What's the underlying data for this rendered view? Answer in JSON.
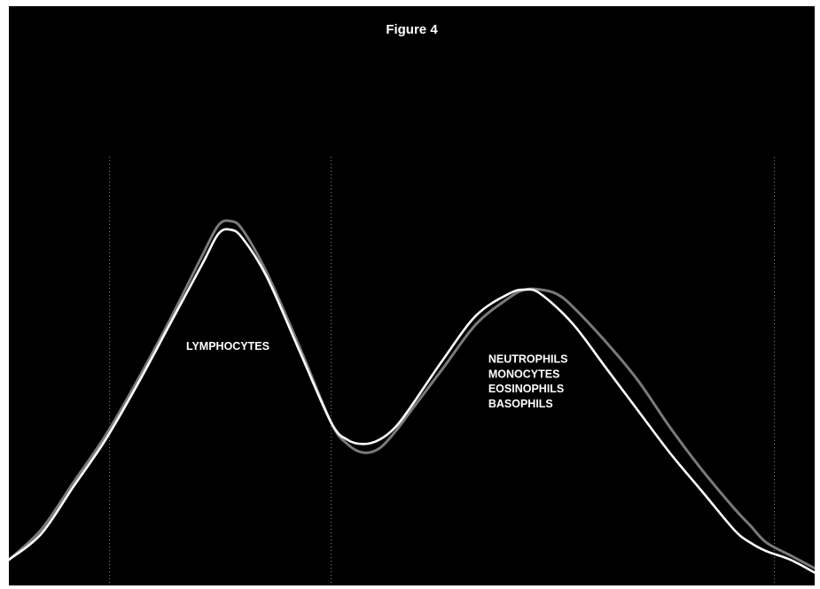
{
  "chart_data": {
    "type": "line",
    "title": "Figure 4",
    "xlabel": "",
    "ylabel": "",
    "xlim": [
      0,
      100
    ],
    "ylim": [
      0,
      100
    ],
    "grid": {
      "vertical_dotted_lines_at_x": [
        12.5,
        40,
        95
      ]
    },
    "series": [
      {
        "color": "#ffffff",
        "x": [
          0,
          4,
          8,
          12,
          16,
          20,
          24,
          26,
          27.5,
          29,
          32,
          36,
          40,
          42,
          44,
          46,
          48,
          50,
          54,
          58,
          62,
          64,
          66,
          70,
          74,
          78,
          82,
          86,
          90,
          92,
          94,
          97,
          100
        ],
        "y": [
          6,
          12,
          23,
          34,
          47,
          61,
          75,
          82,
          83,
          81,
          72,
          55,
          38,
          34,
          33,
          34,
          37,
          42,
          53,
          63,
          68,
          69,
          68,
          61,
          51,
          41,
          31,
          22,
          13,
          10,
          8,
          6,
          3
        ]
      },
      {
        "color": "#7a7a7a",
        "x": [
          0,
          4,
          8,
          12,
          16,
          20,
          24,
          26,
          27.5,
          29,
          32,
          36,
          40,
          42,
          44,
          46,
          48,
          50,
          54,
          58,
          62,
          64,
          66,
          68,
          70,
          74,
          78,
          82,
          86,
          90,
          92,
          94,
          97,
          100
        ],
        "y": [
          6,
          13,
          24,
          35,
          48,
          62,
          77,
          84,
          85,
          83,
          73,
          56,
          38,
          33,
          31,
          32,
          36,
          41,
          51,
          61,
          67,
          69,
          69,
          68,
          65,
          57,
          48,
          37,
          27,
          18,
          14,
          10,
          7,
          4
        ]
      }
    ],
    "annotations": [
      {
        "text": "LYMPHOCYTES",
        "x": 22,
        "y": 55
      },
      {
        "text": "NEUTROPHILS",
        "x": 59.5,
        "y": 52
      },
      {
        "text": "MONOCYTES",
        "x": 59.5,
        "y": 48.5
      },
      {
        "text": "EOSINOPHILS",
        "x": 59.5,
        "y": 45
      },
      {
        "text": "BASOPHILS",
        "x": 59.5,
        "y": 41.5
      }
    ]
  }
}
